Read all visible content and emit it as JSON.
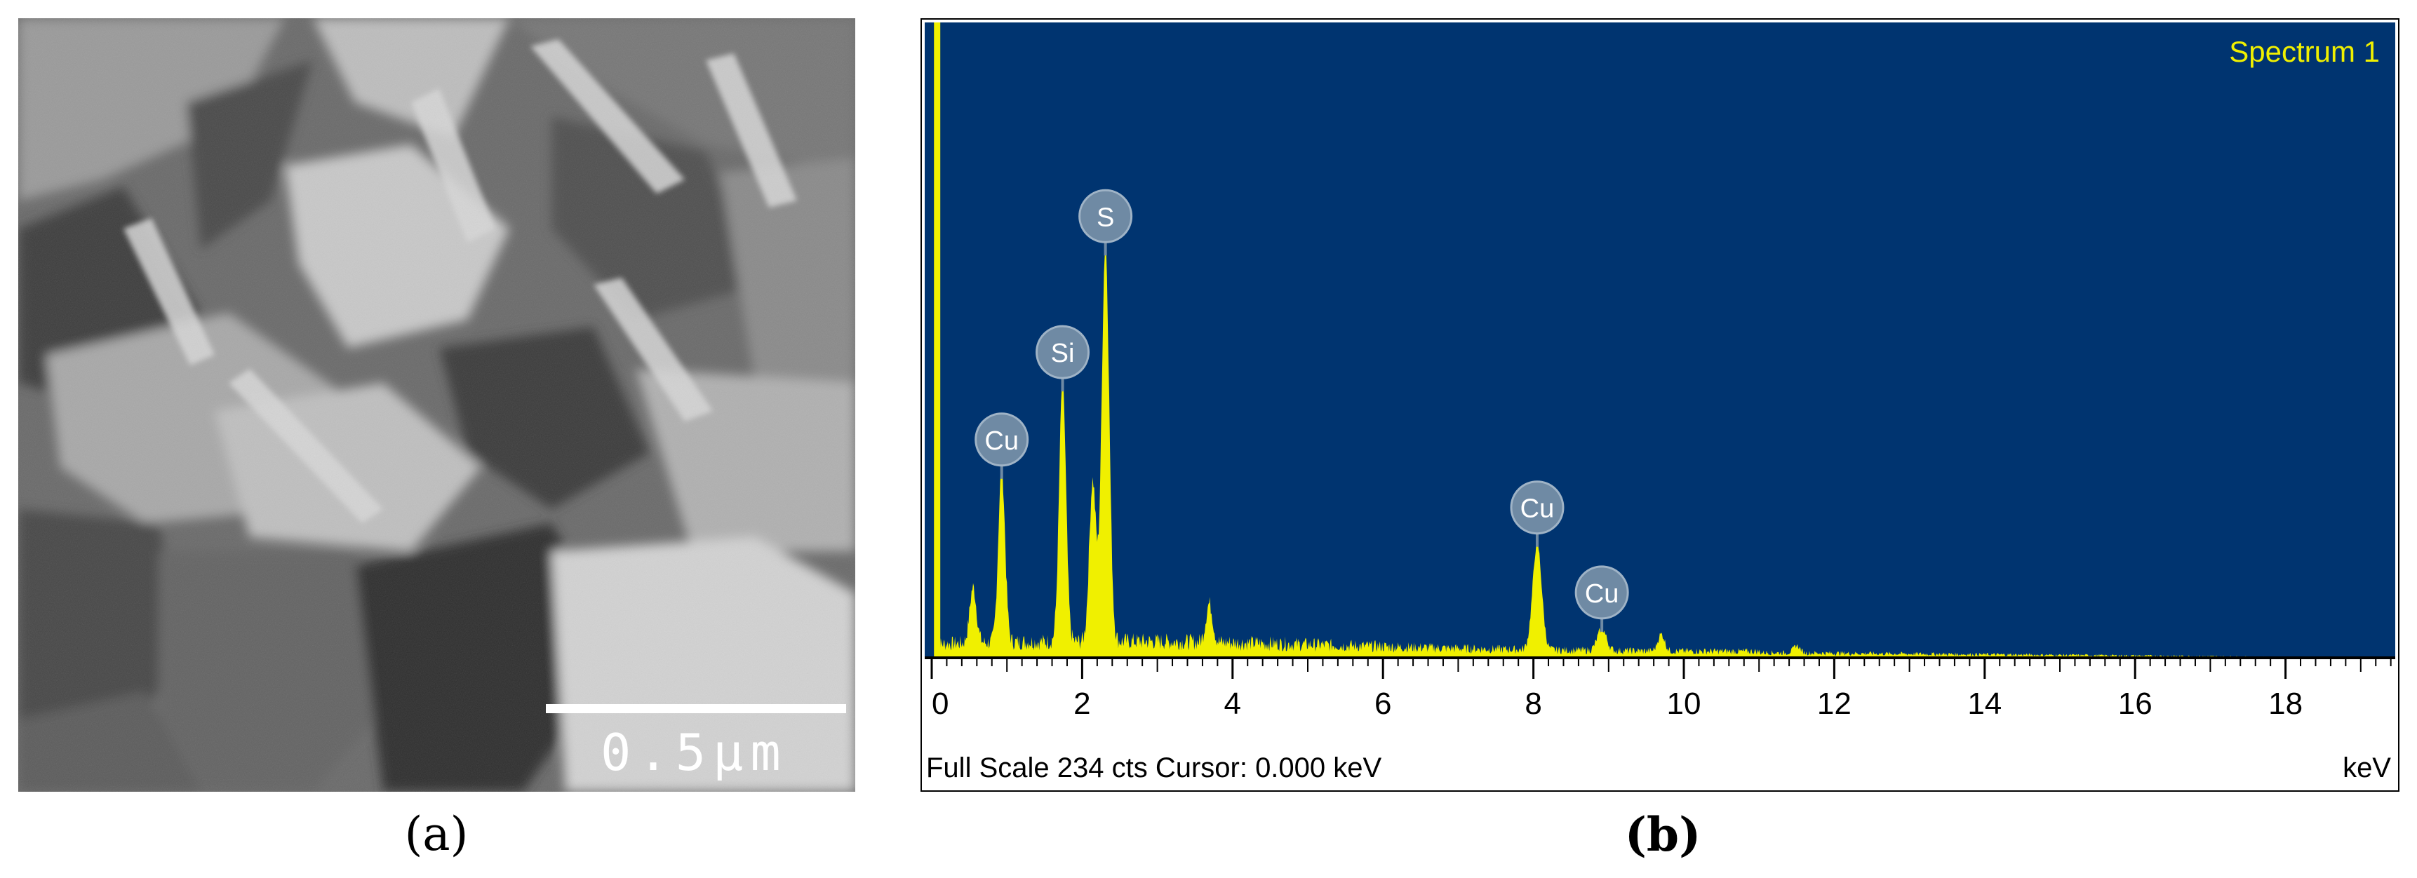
{
  "panels": {
    "a": {
      "label": "(a)",
      "scale_bar_label": "0.5μm"
    },
    "b": {
      "label": "(b)"
    }
  },
  "chart_data": {
    "type": "line",
    "title": "Spectrum 1",
    "series": [
      {
        "name": "Spectrum 1"
      }
    ],
    "xlabel": "keV",
    "xlim": [
      0,
      19.8
    ],
    "ylim": [
      0,
      234
    ],
    "x_ticks": [
      0,
      2,
      4,
      6,
      8,
      10,
      12,
      14,
      16,
      18
    ],
    "x_tick_labels": [
      "0",
      "2",
      "4",
      "6",
      "8",
      "10",
      "12",
      "14",
      "16",
      "18"
    ],
    "footer_left": "Full Scale 234 cts  Cursor: 0.000 keV",
    "footer_right": "keV",
    "peaks": [
      {
        "label": "Cu",
        "x": 0.93,
        "y": 72,
        "w": 0.045
      },
      {
        "label": "Si",
        "x": 1.74,
        "y": 108,
        "w": 0.045
      },
      {
        "label": "S",
        "x": 2.31,
        "y": 164,
        "w": 0.05
      },
      {
        "label": "Cu",
        "x": 8.05,
        "y": 44,
        "w": 0.06
      },
      {
        "label": "Cu",
        "x": 8.91,
        "y": 9,
        "w": 0.06
      }
    ],
    "minor_peaks": [
      {
        "x": 0.55,
        "y": 23
      },
      {
        "x": 2.14,
        "y": 66
      },
      {
        "x": 3.69,
        "y": 16
      },
      {
        "x": 9.7,
        "y": 7
      },
      {
        "x": 11.5,
        "y": 3
      }
    ],
    "colors": {
      "background": "#003470",
      "signal": "#f0f000",
      "marker": "#6f8aa4",
      "title": "#f0f000"
    }
  }
}
